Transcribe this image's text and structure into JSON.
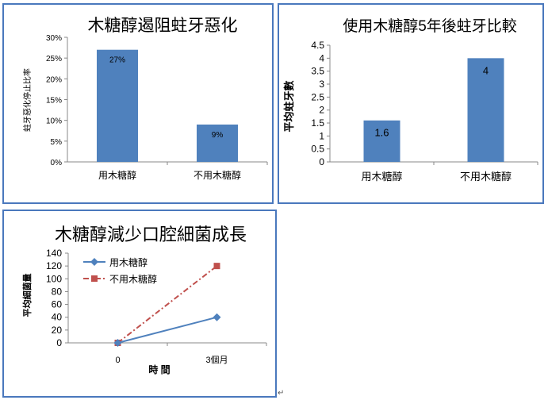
{
  "chart_data": [
    {
      "type": "bar",
      "title": "木糖醇遏阻蛀牙惡化",
      "ylabel": "蛀牙惡化停止比率",
      "xlabel": "",
      "categories": [
        "用木糖醇",
        "不用木糖醇"
      ],
      "values": [
        27,
        9
      ],
      "data_labels": [
        "27%",
        "9%"
      ],
      "ylim": [
        0,
        30
      ],
      "yticks": [
        "0%",
        "5%",
        "10%",
        "15%",
        "20%",
        "25%",
        "30%"
      ],
      "grid": false,
      "legend": "none",
      "bar_color": "#4f81bd"
    },
    {
      "type": "bar",
      "title": "使用木糖醇5年後蛀牙比較",
      "ylabel": "平均蛀牙數",
      "xlabel": "",
      "categories": [
        "用木糖醇",
        "不用木糖醇"
      ],
      "values": [
        1.6,
        4
      ],
      "data_labels": [
        "1.6",
        "4"
      ],
      "ylim": [
        0,
        4.5
      ],
      "yticks": [
        "0",
        "0.5",
        "1",
        "1.5",
        "2",
        "2.5",
        "3",
        "3.5",
        "4",
        "4.5"
      ],
      "grid": false,
      "legend": "none",
      "bar_color": "#4f81bd"
    },
    {
      "type": "line",
      "title": "木糖醇減少口腔細菌成長",
      "ylabel": "平均細菌量",
      "xlabel": "時 間",
      "categories": [
        "0",
        "3個月"
      ],
      "series": [
        {
          "name": "用木糖醇",
          "values": [
            0,
            40
          ],
          "color": "#4f81bd",
          "marker": "diamond",
          "dash": "solid"
        },
        {
          "name": "不用木糖醇",
          "values": [
            0,
            120
          ],
          "color": "#c0504d",
          "marker": "square",
          "dash": "dashdot"
        }
      ],
      "ylim": [
        0,
        140
      ],
      "yticks": [
        "0",
        "20",
        "40",
        "60",
        "80",
        "100",
        "120",
        "140"
      ],
      "grid": false,
      "legend": "top-left"
    }
  ],
  "footer_mark": "↵"
}
